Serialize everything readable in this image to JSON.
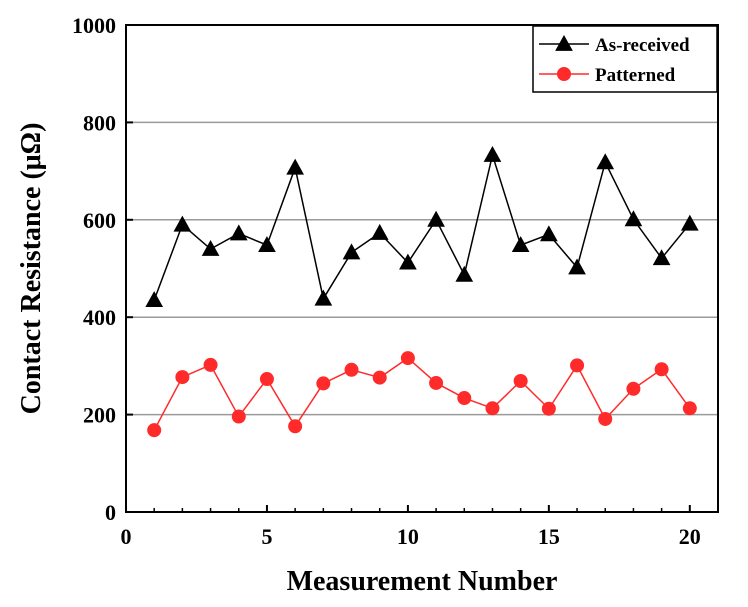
{
  "chart_data": {
    "type": "line",
    "title": "",
    "xlabel": "Measurement Number",
    "ylabel": "Contact Resistance (μΩ)",
    "xlim": [
      0,
      21
    ],
    "ylim": [
      0,
      1000
    ],
    "xticks": [
      0,
      5,
      10,
      15,
      20
    ],
    "yticks": [
      0,
      200,
      400,
      600,
      800,
      1000
    ],
    "grid": "horizontal",
    "legend_position": "top-right",
    "x": [
      1,
      2,
      3,
      4,
      5,
      6,
      7,
      8,
      9,
      10,
      11,
      12,
      13,
      14,
      15,
      16,
      17,
      18,
      19,
      20
    ],
    "series": [
      {
        "name": "As-received",
        "color": "#000000",
        "marker": "triangle",
        "values": [
          435,
          590,
          540,
          572,
          548,
          707,
          438,
          533,
          573,
          512,
          600,
          487,
          733,
          548,
          570,
          502,
          718,
          601,
          521,
          592
        ]
      },
      {
        "name": "Patterned",
        "color": "#ff2a2a",
        "marker": "circle",
        "values": [
          168,
          277,
          302,
          196,
          273,
          176,
          264,
          292,
          276,
          316,
          265,
          234,
          213,
          269,
          212,
          301,
          191,
          253,
          293,
          213
        ]
      }
    ]
  }
}
